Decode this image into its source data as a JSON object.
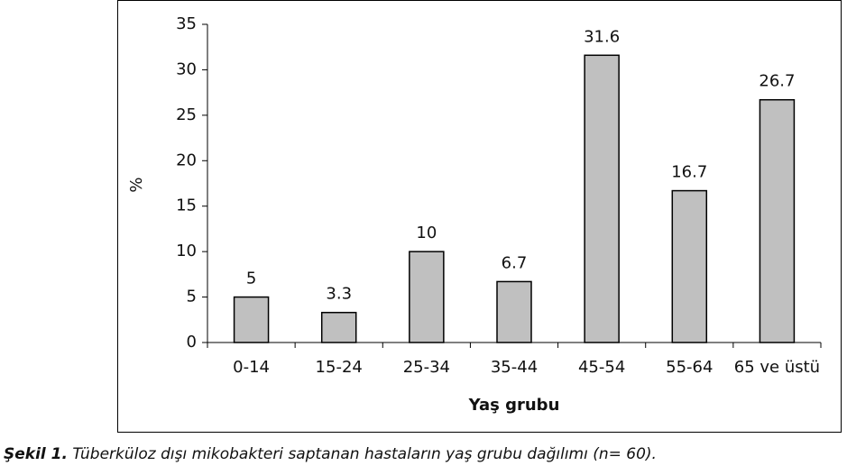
{
  "chart_data": {
    "type": "bar",
    "categories": [
      "0-14",
      "15-24",
      "25-34",
      "35-44",
      "45-54",
      "55-64",
      "65 ve üstü"
    ],
    "values": [
      5,
      3.3,
      10,
      6.7,
      31.6,
      16.7,
      26.7
    ],
    "color": "#c0c0c0",
    "ylim": [
      0,
      35
    ],
    "yticks": [
      0,
      5,
      10,
      15,
      20,
      25,
      30,
      35
    ],
    "ylabel": "%",
    "xlabel": "Yaş grubu",
    "caption_label": "Şekil 1.",
    "caption": "Tüberküloz dışı mikobakteri saptanan hastaların yaş grubu dağılımı (n= 60)."
  }
}
